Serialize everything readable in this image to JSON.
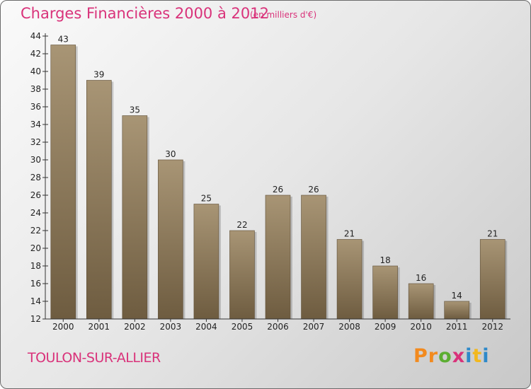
{
  "header": {
    "title": "Charges Financières 2000 à 2012",
    "subtitle": "(en milliers d'€)"
  },
  "footer": {
    "place": "TOULON-SUR-ALLIER",
    "logo_letters": [
      "P",
      "r",
      "o",
      "x",
      "i",
      "t",
      "i"
    ]
  },
  "colors": {
    "title": "#d9327a",
    "bar_top": "#a89575",
    "bar_bottom": "#6e5c40",
    "logo": [
      "#f28a1e",
      "#f28a1e",
      "#5cae32",
      "#d9327a",
      "#2e89c9",
      "#f2b81e",
      "#2e89c9"
    ]
  },
  "chart_data": {
    "type": "bar",
    "title": "Charges Financières 2000 à 2012",
    "subtitle": "(en milliers d'€)",
    "categories": [
      "2000",
      "2001",
      "2002",
      "2003",
      "2004",
      "2005",
      "2006",
      "2007",
      "2008",
      "2009",
      "2010",
      "2011",
      "2012"
    ],
    "values": [
      43,
      39,
      35,
      30,
      25,
      22,
      26,
      26,
      21,
      18,
      16,
      14,
      21
    ],
    "ylim": [
      12,
      44
    ],
    "yticks": [
      12,
      14,
      16,
      18,
      20,
      22,
      24,
      26,
      28,
      30,
      32,
      34,
      36,
      38,
      40,
      42,
      44
    ],
    "grid": false,
    "legend": "none",
    "data_labels": true
  }
}
